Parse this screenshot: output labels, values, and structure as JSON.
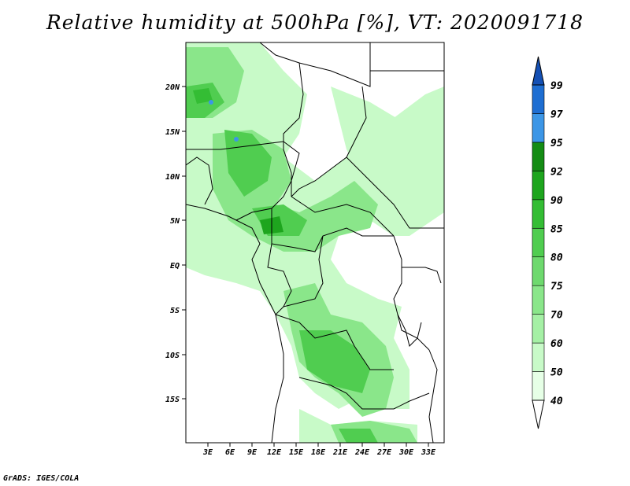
{
  "title": "Relative humidity at 500hPa [%], VT: 2020091718",
  "credit": "GrADS: IGES/COLA",
  "map": {
    "lat_ticks": [
      "20N",
      "15N",
      "10N",
      "5N",
      "EQ",
      "5S",
      "10S",
      "15S"
    ],
    "lon_ticks": [
      "3E",
      "6E",
      "9E",
      "12E",
      "15E",
      "18E",
      "21E",
      "24E",
      "27E",
      "30E",
      "33E"
    ]
  },
  "colorbar": {
    "levels": [
      "40",
      "50",
      "60",
      "70",
      "75",
      "80",
      "85",
      "90",
      "92",
      "95",
      "97",
      "99"
    ],
    "colors": [
      "#ffffff",
      "#e6ffe6",
      "#c8fac8",
      "#a5f0a5",
      "#8ae68a",
      "#6ed96e",
      "#50cd50",
      "#34bd34",
      "#1ea51e",
      "#148c14",
      "#3c96e6",
      "#1e6ed2",
      "#1450b4"
    ]
  },
  "colors": {
    "light_green": "#c8fac8",
    "mid_green": "#6ed96e",
    "dark_green": "#1ea51e",
    "blue": "#3c96e6"
  }
}
